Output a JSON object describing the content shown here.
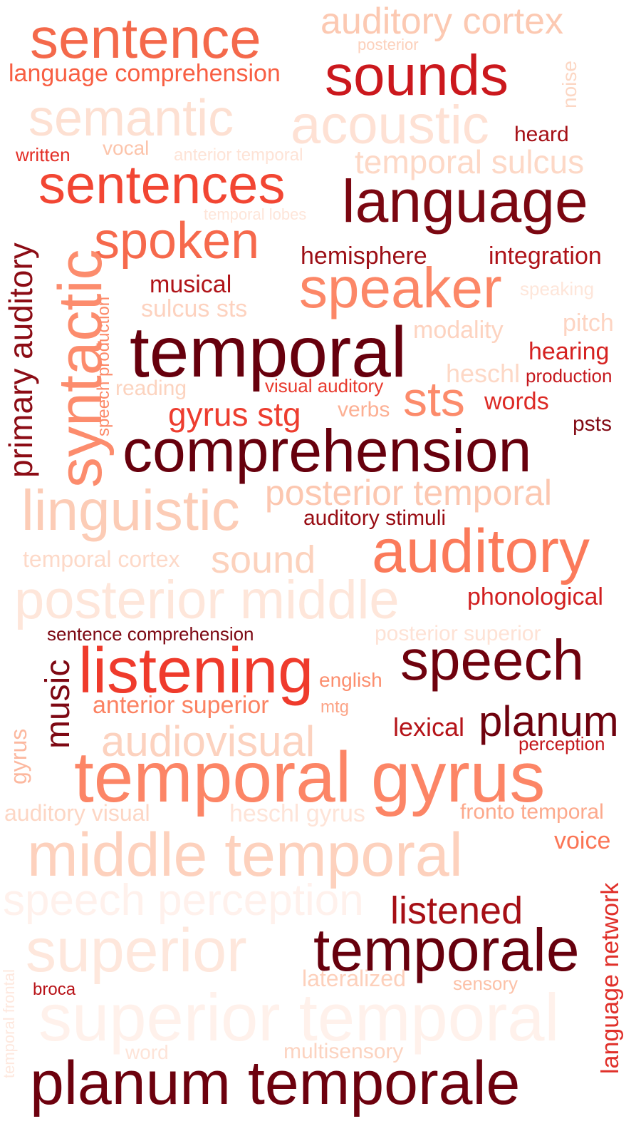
{
  "words": [
    {
      "id": "sentence",
      "text": "sentence",
      "color": "#f4694b"
    },
    {
      "id": "auditory-cortex",
      "text": "auditory cortex",
      "color": "#fcc9b2"
    },
    {
      "id": "posterior",
      "text": "posterior",
      "color": "#fcd0bb"
    },
    {
      "id": "noise",
      "text": "noise",
      "color": "#fcd7c4"
    },
    {
      "id": "sounds",
      "text": "sounds",
      "color": "#cb181d"
    },
    {
      "id": "language-comprehension",
      "text": "language comprehension",
      "color": "#f85f43"
    },
    {
      "id": "semantic",
      "text": "semantic",
      "color": "#fde0d2"
    },
    {
      "id": "acoustic",
      "text": "acoustic",
      "color": "#fee1d4"
    },
    {
      "id": "heard",
      "text": "heard",
      "color": "#a50f15"
    },
    {
      "id": "written",
      "text": "written",
      "color": "#e32f27"
    },
    {
      "id": "vocal",
      "text": "vocal",
      "color": "#fcc4ab"
    },
    {
      "id": "anterior-temporal",
      "text": "anterior temporal",
      "color": "#fee3d6"
    },
    {
      "id": "temporal-sulcus",
      "text": "temporal sulcus",
      "color": "#fdd8c6"
    },
    {
      "id": "sentences",
      "text": "sentences",
      "color": "#f24633"
    },
    {
      "id": "language",
      "text": "language",
      "color": "#7b0711"
    },
    {
      "id": "temporal-lobes",
      "text": "temporal lobes",
      "color": "#fee5d9"
    },
    {
      "id": "primary-auditory",
      "text": "primary auditory",
      "color": "#8c0c15"
    },
    {
      "id": "spoken",
      "text": "spoken",
      "color": "#f6694c"
    },
    {
      "id": "hemisphere",
      "text": "hemisphere",
      "color": "#9c0e15"
    },
    {
      "id": "integration",
      "text": "integration",
      "color": "#ae1218"
    },
    {
      "id": "syntactic",
      "text": "syntactic",
      "color": "#fc8c6d"
    },
    {
      "id": "speech-production",
      "text": "speech production",
      "color": "#fc8968"
    },
    {
      "id": "musical",
      "text": "musical",
      "color": "#b01419"
    },
    {
      "id": "speaker",
      "text": "speaker",
      "color": "#fc8767"
    },
    {
      "id": "speaking",
      "text": "speaking",
      "color": "#fee6da"
    },
    {
      "id": "sulcus-sts",
      "text": "sulcus sts",
      "color": "#fdd2bf"
    },
    {
      "id": "pitch",
      "text": "pitch",
      "color": "#fdd4c2"
    },
    {
      "id": "temporal",
      "text": "temporal",
      "color": "#67000d"
    },
    {
      "id": "modality",
      "text": "modality",
      "color": "#fdd3c0"
    },
    {
      "id": "hearing",
      "text": "hearing",
      "color": "#d52221"
    },
    {
      "id": "heschl",
      "text": "heschl",
      "color": "#fdd8c6"
    },
    {
      "id": "production",
      "text": "production",
      "color": "#c5171c"
    },
    {
      "id": "reading",
      "text": "reading",
      "color": "#fcd3bf"
    },
    {
      "id": "visual-auditory",
      "text": "visual auditory",
      "color": "#e8392d"
    },
    {
      "id": "sts",
      "text": "sts",
      "color": "#fc8b6b"
    },
    {
      "id": "gyrus-stg",
      "text": "gyrus stg",
      "color": "#ed3d2f"
    },
    {
      "id": "verbs",
      "text": "verbs",
      "color": "#fcaf93"
    },
    {
      "id": "words",
      "text": "words",
      "color": "#dc2a25"
    },
    {
      "id": "psts",
      "text": "psts",
      "color": "#820a14"
    },
    {
      "id": "comprehension",
      "text": "comprehension",
      "color": "#67000d"
    },
    {
      "id": "linguistic",
      "text": "linguistic",
      "color": "#fcccb6"
    },
    {
      "id": "posterior-temporal",
      "text": "posterior temporal",
      "color": "#fcc7b0"
    },
    {
      "id": "auditory-stimuli",
      "text": "auditory stimuli",
      "color": "#980c13"
    },
    {
      "id": "auditory",
      "text": "auditory",
      "color": "#fb7a5a"
    },
    {
      "id": "temporal-cortex",
      "text": "temporal cortex",
      "color": "#fdd9c8"
    },
    {
      "id": "sound",
      "text": "sound",
      "color": "#fcd2bd"
    },
    {
      "id": "posterior-middle",
      "text": "posterior middle",
      "color": "#fee6da"
    },
    {
      "id": "phonological",
      "text": "phonological",
      "color": "#d11e1f"
    },
    {
      "id": "sentence-comprehension",
      "text": "sentence comprehension",
      "color": "#7c0712"
    },
    {
      "id": "posterior-superior",
      "text": "posterior superior",
      "color": "#fee2d5"
    },
    {
      "id": "music",
      "text": "music",
      "color": "#7e0813"
    },
    {
      "id": "listening",
      "text": "listening",
      "color": "#ef3b2c"
    },
    {
      "id": "english",
      "text": "english",
      "color": "#fc8e6e"
    },
    {
      "id": "speech",
      "text": "speech",
      "color": "#6f020e"
    },
    {
      "id": "anterior-superior",
      "text": "anterior superior",
      "color": "#fb8262"
    },
    {
      "id": "mtg",
      "text": "mtg",
      "color": "#fca487"
    },
    {
      "id": "lexical",
      "text": "lexical",
      "color": "#b51419"
    },
    {
      "id": "planum",
      "text": "planum",
      "color": "#6f020e"
    },
    {
      "id": "perception",
      "text": "perception",
      "color": "#c3161b"
    },
    {
      "id": "audiovisual",
      "text": "audiovisual",
      "color": "#fcd2bf"
    },
    {
      "id": "gyrus",
      "text": "gyrus",
      "color": "#fcb89f"
    },
    {
      "id": "temporal-gyrus",
      "text": "temporal gyrus",
      "color": "#fc8566"
    },
    {
      "id": "auditory-visual",
      "text": "auditory visual",
      "color": "#fdd6c4"
    },
    {
      "id": "heschl-gyrus",
      "text": "heschl gyrus",
      "color": "#fee4d8"
    },
    {
      "id": "fronto-temporal",
      "text": "fronto temporal",
      "color": "#fca98c"
    },
    {
      "id": "voice",
      "text": "voice",
      "color": "#fb7555"
    },
    {
      "id": "middle-temporal",
      "text": "middle temporal",
      "color": "#fdd1bd"
    },
    {
      "id": "language-network",
      "text": "language network",
      "color": "#e0302a"
    },
    {
      "id": "speech-perception",
      "text": "speech perception",
      "color": "#fff1ec"
    },
    {
      "id": "listened",
      "text": "listened",
      "color": "#a60f15"
    },
    {
      "id": "temporale",
      "text": "temporale",
      "color": "#67000d"
    },
    {
      "id": "superior",
      "text": "superior",
      "color": "#fee7dc"
    },
    {
      "id": "lateralized",
      "text": "lateralized",
      "color": "#fdd0bb"
    },
    {
      "id": "broca",
      "text": "broca",
      "color": "#b81419"
    },
    {
      "id": "sensory",
      "text": "sensory",
      "color": "#fcc1a8"
    },
    {
      "id": "superior-temporal",
      "text": "superior temporal",
      "color": "#fff1eb"
    },
    {
      "id": "temporal-frontal",
      "text": "temporal frontal",
      "color": "#fee8de"
    },
    {
      "id": "word",
      "text": "word",
      "color": "#fee4d8"
    },
    {
      "id": "multisensory",
      "text": "multisensory",
      "color": "#fcd3c0"
    },
    {
      "id": "planum-temporale",
      "text": "planum temporale",
      "color": "#6d010e"
    }
  ]
}
